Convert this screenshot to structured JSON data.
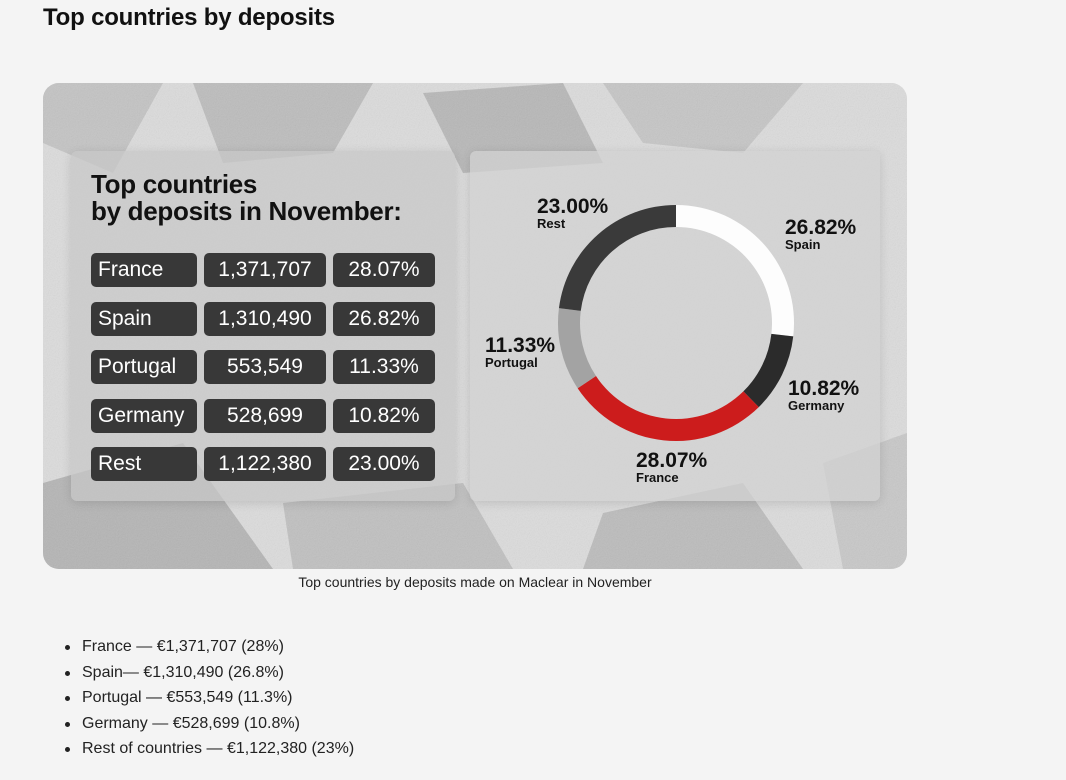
{
  "page": {
    "heading": "Top countries by deposits",
    "caption": "Top countries by deposits made on Maclear in November"
  },
  "infographic": {
    "title_line1": "Top countries",
    "title_line2": "by deposits in November:",
    "rows": [
      {
        "country": "France",
        "amount": "1,371,707",
        "pct": "28.07%"
      },
      {
        "country": "Spain",
        "amount": "1,310,490",
        "pct": "26.82%"
      },
      {
        "country": "Portugal",
        "amount": "553,549",
        "pct": "11.33%"
      },
      {
        "country": "Germany",
        "amount": "528,699",
        "pct": "10.82%"
      },
      {
        "country": "Rest",
        "amount": "1,122,380",
        "pct": "23.00%"
      }
    ]
  },
  "chart_data": {
    "type": "pie",
    "style": "donut",
    "categories": [
      "Spain",
      "Germany",
      "France",
      "Portugal",
      "Rest"
    ],
    "values": [
      26.82,
      10.82,
      28.07,
      11.33,
      23.0
    ],
    "labels": [
      "26.82%",
      "10.82%",
      "28.07%",
      "11.33%",
      "23.00%"
    ],
    "colors": [
      "#fdfdfd",
      "#2b2b2b",
      "#cc1c1c",
      "#a3a3a3",
      "#3a3a3a"
    ],
    "start": "top, clockwise"
  },
  "bullets": [
    "France — €1,371,707 (28%)",
    "Spain— €1,310,490 (26.8%)",
    "Portugal — €553,549 (11.3%)",
    "Germany — €528,699 (10.8%)",
    "Rest of countries — €1,122,380 (23%)"
  ]
}
